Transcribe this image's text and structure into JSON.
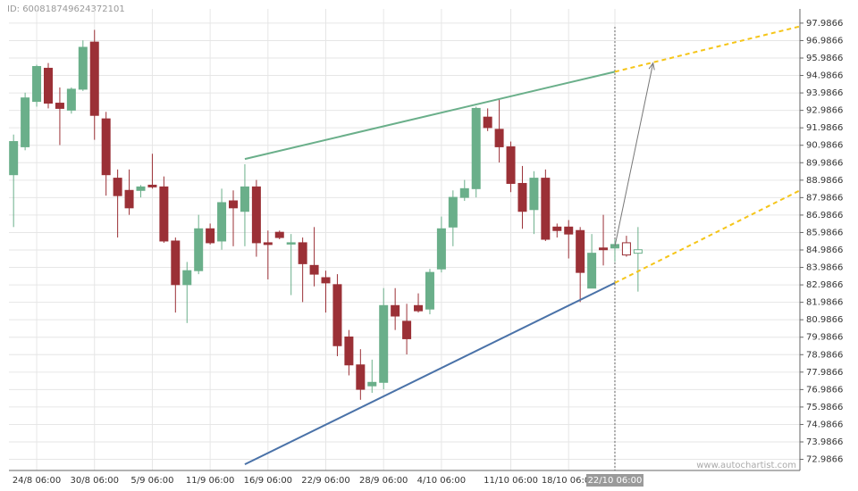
{
  "id_text": "ID: 600818749624372101",
  "watermark": "www.autochartist.com",
  "chart_data": {
    "type": "candlestick",
    "categories": [
      null,
      null,
      "24/8 06:00",
      null,
      null,
      null,
      null,
      "30/8 06:00",
      null,
      null,
      null,
      null,
      "5/9 06:00",
      null,
      null,
      null,
      null,
      "11/9 06:00",
      null,
      null,
      null,
      null,
      "16/9 06:00",
      null,
      null,
      null,
      null,
      "22/9 06:00",
      null,
      null,
      null,
      null,
      "28/9 06:00",
      null,
      null,
      null,
      null,
      "4/10 06:00",
      null,
      null,
      null,
      null,
      null,
      "11/10 06:00",
      null,
      null,
      null,
      null,
      "18/10 06:00",
      null,
      null,
      null,
      "22/10 06:00",
      null,
      null
    ],
    "open": [
      89.3,
      90.9,
      93.5,
      95.4,
      93.4,
      93.0,
      94.2,
      96.9,
      92.5,
      89.1,
      88.4,
      88.4,
      88.7,
      88.6,
      85.5,
      83.0,
      83.8,
      86.2,
      85.5,
      87.8,
      87.2,
      88.6,
      85.4,
      86.0,
      85.4,
      85.4,
      84.1,
      83.4,
      83.0,
      80.0,
      78.4,
      77.2,
      77.4,
      81.8,
      80.9,
      81.8,
      81.6,
      83.9,
      86.3,
      88.0,
      88.5,
      92.6,
      91.9,
      90.9,
      88.8,
      87.3,
      89.1,
      86.3,
      86.3,
      86.1,
      82.8,
      85.1,
      85.1,
      85.4,
      84.8
    ],
    "high": [
      91.6,
      94.0,
      95.6,
      95.7,
      94.3,
      94.3,
      97.0,
      97.6,
      92.9,
      89.6,
      89.6,
      88.7,
      90.5,
      89.2,
      85.7,
      84.3,
      87.0,
      86.5,
      88.5,
      88.4,
      89.9,
      89.0,
      86.1,
      86.1,
      85.9,
      85.7,
      86.3,
      83.8,
      83.6,
      80.4,
      79.3,
      78.7,
      82.8,
      82.8,
      81.9,
      82.5,
      83.9,
      86.9,
      88.4,
      89.0,
      93.2,
      93.1,
      93.6,
      91.2,
      89.8,
      89.5,
      89.6,
      86.5,
      86.7,
      86.3,
      85.9,
      87.0,
      85.6,
      85.8,
      86.3
    ],
    "low": [
      86.3,
      90.7,
      93.2,
      93.1,
      91.0,
      92.8,
      94.1,
      91.3,
      88.1,
      85.7,
      87.0,
      88.0,
      88.5,
      85.4,
      81.4,
      80.8,
      83.6,
      85.3,
      85.0,
      85.2,
      85.2,
      84.6,
      83.3,
      85.6,
      82.4,
      82.0,
      82.9,
      81.4,
      78.9,
      77.8,
      76.4,
      76.8,
      77.0,
      80.4,
      79.0,
      81.4,
      81.3,
      83.7,
      85.2,
      87.8,
      88.0,
      91.8,
      90.0,
      88.3,
      86.2,
      85.9,
      85.5,
      85.7,
      84.5,
      82.0,
      82.8,
      84.1,
      84.3,
      84.6,
      82.6
    ],
    "close": [
      91.2,
      93.7,
      95.5,
      93.4,
      93.1,
      94.2,
      96.6,
      92.7,
      89.3,
      88.1,
      87.4,
      88.6,
      88.6,
      85.5,
      83.0,
      83.8,
      86.2,
      85.4,
      87.7,
      87.4,
      88.6,
      85.4,
      85.3,
      85.7,
      85.4,
      84.2,
      83.6,
      83.1,
      79.5,
      78.4,
      77.0,
      77.4,
      81.8,
      81.2,
      79.9,
      81.5,
      83.7,
      86.2,
      88.0,
      88.5,
      93.1,
      92.0,
      90.9,
      88.8,
      87.2,
      89.1,
      85.6,
      86.1,
      85.9,
      83.7,
      84.8,
      85.0,
      85.3,
      84.7,
      85.0
    ],
    "up_color": "#6aaf8a",
    "down_color": "#9b3036",
    "hollow_from": 53,
    "cursor_index": 52,
    "xlim": [
      -0.4,
      68
    ],
    "ylim": [
      72.35,
      98.8
    ],
    "yticks": [
      72.9866,
      73.9866,
      74.9866,
      75.9866,
      76.9866,
      77.9866,
      78.9866,
      79.9866,
      80.9866,
      81.9866,
      82.9866,
      83.9866,
      84.9866,
      85.9866,
      86.9866,
      87.9866,
      88.9866,
      89.9866,
      90.9866,
      91.9866,
      92.9866,
      93.9866,
      94.9866,
      95.9866,
      96.9866,
      97.9866
    ],
    "grid": true,
    "lines": [
      {
        "color": "#6aaf8a",
        "dashed": false,
        "x": [
          20,
          52
        ],
        "values": [
          90.2,
          95.2
        ]
      },
      {
        "color": "#4a72a8",
        "dashed": false,
        "x": [
          20,
          52
        ],
        "values": [
          72.7,
          83.1
        ]
      },
      {
        "color": "#f5c518",
        "dashed": true,
        "x": [
          52,
          68
        ],
        "values": [
          95.2,
          97.8
        ]
      },
      {
        "color": "#f5c518",
        "dashed": true,
        "x": [
          52,
          68
        ],
        "values": [
          83.1,
          88.4
        ]
      }
    ],
    "arrow": {
      "color": "#777777",
      "x": [
        52,
        55.3
      ],
      "values": [
        85.2,
        95.7
      ]
    }
  }
}
